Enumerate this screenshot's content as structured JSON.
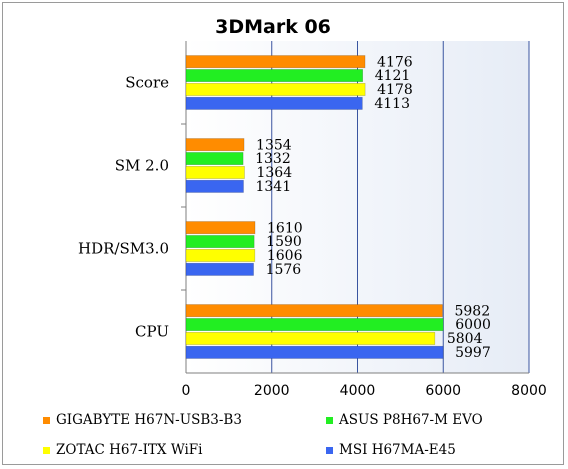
{
  "chart_data": {
    "type": "bar",
    "orientation": "horizontal",
    "title": "3DMark 06",
    "xlabel": "",
    "ylabel": "",
    "xlim": [
      0,
      8000
    ],
    "xticks": [
      "0",
      "2000",
      "4000",
      "6000",
      "8000"
    ],
    "categories": [
      "Score",
      "SM 2.0",
      "HDR/SM3.0",
      "CPU"
    ],
    "series": [
      {
        "name": "GIGABYTE H67N-USB3-B3",
        "color": "#ff8c00",
        "values": [
          4176,
          1354,
          1610,
          5982
        ]
      },
      {
        "name": "ASUS P8H67-M EVO",
        "color": "#22ee22",
        "values": [
          4121,
          1332,
          1590,
          6000
        ]
      },
      {
        "name": "ZOTAC H67-ITX WiFi",
        "color": "#ffff00",
        "values": [
          4178,
          1364,
          1606,
          5804
        ]
      },
      {
        "name": "MSI H67MA-E45",
        "color": "#3a66f0",
        "values": [
          4113,
          1341,
          1576,
          5997
        ]
      }
    ],
    "grid": "vertical",
    "legend_position": "bottom"
  }
}
